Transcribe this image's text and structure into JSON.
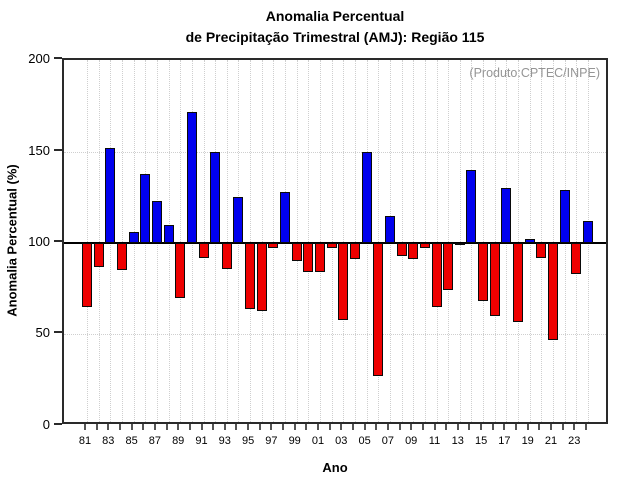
{
  "title": {
    "line1": "Anomalia Percentual",
    "line2": "de Precipitação Trimestral (AMJ): Região 115"
  },
  "annotation": "(Produto:CPTEC/INPE)",
  "y_axis": {
    "label": "Anomalia Percentual (%)",
    "ticks": [
      0,
      50,
      100,
      150,
      200
    ]
  },
  "x_axis": {
    "label": "Ano",
    "labeled_years": [
      1981,
      1983,
      1985,
      1987,
      1989,
      1991,
      1993,
      1995,
      1997,
      1999,
      2001,
      2003,
      2005,
      2007,
      2009,
      2011,
      2013,
      2015,
      2017,
      2019,
      2021,
      2023
    ]
  },
  "colors": {
    "above_baseline": "#0000ee",
    "below_baseline": "#ee0000",
    "bar_outline": "#0a0a0a",
    "grid": "#cfcfcf",
    "frame": "#2a2a2a",
    "annotation_text": "#959595"
  },
  "chart_data": {
    "type": "bar",
    "title": "Anomalia Percentual de Precipitação Trimestral (AMJ): Região 115",
    "xlabel": "Ano",
    "ylabel": "Anomalia Percentual (%)",
    "ylim": [
      0,
      200
    ],
    "baseline": 100,
    "grid": "dotted, vertical per year, horizontal at 50 and 150",
    "legend": "blue = anomaly >= 100%, red = anomaly < 100%",
    "x": [
      1981,
      1982,
      1983,
      1984,
      1985,
      1986,
      1987,
      1988,
      1989,
      1990,
      1991,
      1992,
      1993,
      1994,
      1995,
      1996,
      1997,
      1998,
      1999,
      2000,
      2001,
      2002,
      2003,
      2004,
      2005,
      2006,
      2007,
      2008,
      2009,
      2010,
      2011,
      2012,
      2013,
      2014,
      2015,
      2016,
      2017,
      2018,
      2019,
      2020,
      2021,
      2022,
      2023,
      2024
    ],
    "values": [
      65,
      87,
      152,
      85,
      106,
      138,
      123,
      110,
      70,
      172,
      92,
      150,
      86,
      125,
      64,
      63,
      97,
      128,
      90,
      84,
      84,
      97,
      58,
      91,
      150,
      27,
      115,
      93,
      91,
      97,
      65,
      74,
      99,
      140,
      68,
      60,
      130,
      57,
      102,
      92,
      47,
      129,
      83,
      112
    ]
  }
}
